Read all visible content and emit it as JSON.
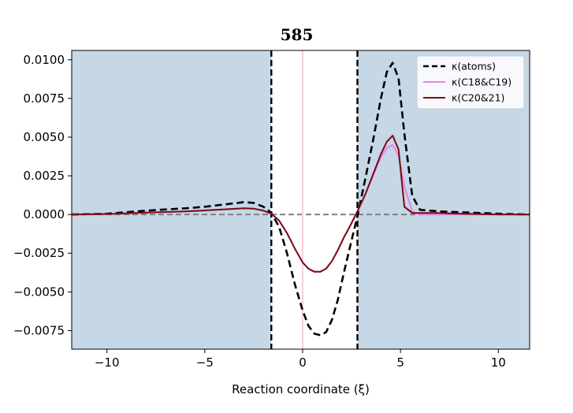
{
  "chart_data": {
    "type": "line",
    "title": "585",
    "xlabel": "Reaction coordinate (ξ)",
    "ylabel": "",
    "xlim": [
      -11.8,
      11.6
    ],
    "ylim": [
      -0.0087,
      0.0106
    ],
    "grid": false,
    "legend_position": "top-right",
    "x_ticks": [
      -10,
      -5,
      0,
      5,
      10
    ],
    "x_tick_labels": [
      "−10",
      "−5",
      "0",
      "5",
      "10"
    ],
    "y_ticks": [
      0.01,
      0.0075,
      0.005,
      0.0025,
      0.0,
      -0.0025,
      -0.005,
      -0.0075
    ],
    "y_tick_labels": [
      "0.0100",
      "0.0075",
      "0.0050",
      "0.0025",
      "0.0000",
      "−0.0025",
      "−0.0050",
      "−0.0075"
    ],
    "shaded_regions": [
      {
        "x_from": -11.8,
        "x_to": -1.6,
        "color": "#c6d7e6"
      },
      {
        "x_from": 2.8,
        "x_to": 11.6,
        "color": "#c6d7e6"
      }
    ],
    "vertical_lines": [
      {
        "x": -1.6,
        "style": "dashed",
        "color": "#000000"
      },
      {
        "x": 2.8,
        "style": "dashed",
        "color": "#000000"
      },
      {
        "x": 0.0,
        "style": "solid",
        "color": "#f8d0dc"
      }
    ],
    "horizontal_lines": [
      {
        "y": 0.0,
        "style": "dashed",
        "color": "#808080"
      }
    ],
    "series": [
      {
        "name": "κ(atoms)",
        "color": "#000000",
        "style": "dashed",
        "x": [
          -11.8,
          -10,
          -8,
          -6,
          -5,
          -4,
          -3,
          -2.5,
          -2,
          -1.6,
          -1.2,
          -0.8,
          -0.4,
          0,
          0.3,
          0.6,
          0.9,
          1.2,
          1.5,
          1.8,
          2.1,
          2.4,
          2.8,
          3.2,
          3.6,
          4.0,
          4.3,
          4.6,
          4.9,
          5.2,
          5.6,
          6.0,
          7,
          8,
          10,
          11.6
        ],
        "y": [
          0.0,
          5e-05,
          0.00025,
          0.0004,
          0.0005,
          0.00065,
          0.0008,
          0.00075,
          0.0005,
          0.0001,
          -0.0008,
          -0.0025,
          -0.0045,
          -0.0062,
          -0.0072,
          -0.0077,
          -0.0078,
          -0.0076,
          -0.0068,
          -0.0055,
          -0.0038,
          -0.0022,
          -0.0001,
          0.0023,
          0.0048,
          0.0075,
          0.0092,
          0.0098,
          0.0088,
          0.0052,
          0.0012,
          0.0003,
          0.0002,
          0.00015,
          5e-05,
          0.0
        ]
      },
      {
        "name": "κ(C18&C19)",
        "color": "#e882e8",
        "style": "solid",
        "x": [
          -11.8,
          -10,
          -8,
          -6,
          -5,
          -4,
          -3,
          -2.5,
          -2,
          -1.6,
          -1.2,
          -0.8,
          -0.4,
          0,
          0.3,
          0.6,
          0.9,
          1.2,
          1.5,
          1.8,
          2.1,
          2.4,
          2.8,
          3.2,
          3.6,
          4.0,
          4.3,
          4.6,
          4.9,
          5.2,
          5.6,
          6.0,
          7,
          8,
          10,
          11.6
        ],
        "y": [
          0.0,
          3e-05,
          0.00012,
          0.0002,
          0.00026,
          0.00033,
          0.0004,
          0.00038,
          0.00025,
          5e-05,
          -0.0004,
          -0.0012,
          -0.0022,
          -0.0031,
          -0.0035,
          -0.0037,
          -0.0037,
          -0.0035,
          -0.003,
          -0.0023,
          -0.0015,
          -0.0008,
          0.0002,
          0.0013,
          0.0025,
          0.0037,
          0.0043,
          0.0045,
          0.0038,
          0.0018,
          0.0002,
          0.0,
          0.0,
          0.0,
          0.0,
          0.0
        ]
      },
      {
        "name": "κ(C20&21)",
        "color": "#7a0a14",
        "style": "solid",
        "x": [
          -11.8,
          -10,
          -8,
          -6,
          -5,
          -4,
          -3,
          -2.5,
          -2,
          -1.6,
          -1.2,
          -0.8,
          -0.4,
          0,
          0.3,
          0.6,
          0.9,
          1.2,
          1.5,
          1.8,
          2.1,
          2.4,
          2.8,
          3.2,
          3.6,
          4.0,
          4.3,
          4.6,
          4.9,
          5.2,
          5.6,
          6.0,
          7,
          8,
          10,
          11.6
        ],
        "y": [
          0.0,
          3e-05,
          0.00012,
          0.0002,
          0.00026,
          0.00033,
          0.0004,
          0.00038,
          0.00025,
          5e-05,
          -0.0004,
          -0.0012,
          -0.0022,
          -0.0031,
          -0.0035,
          -0.0037,
          -0.0037,
          -0.0035,
          -0.003,
          -0.0023,
          -0.0015,
          -0.0008,
          0.0002,
          0.0013,
          0.0026,
          0.0039,
          0.0047,
          0.0051,
          0.0042,
          0.0005,
          0.0001,
          0.0001,
          0.0001,
          5e-05,
          0.0,
          0.0
        ]
      }
    ]
  }
}
